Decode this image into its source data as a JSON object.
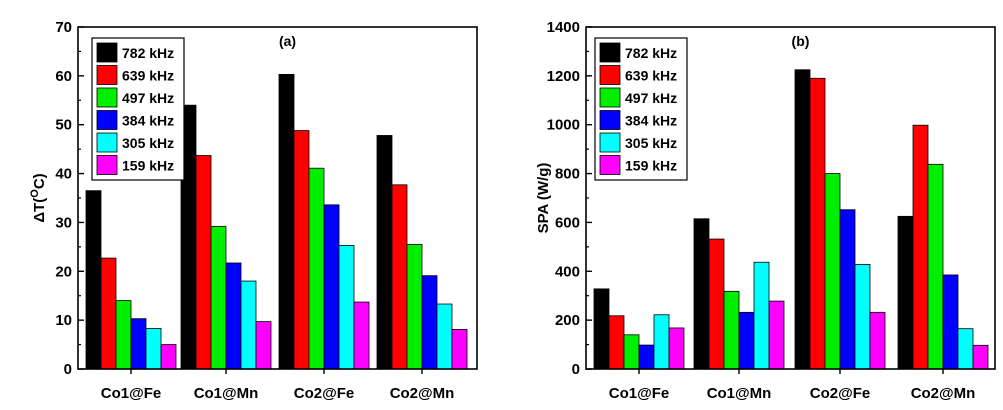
{
  "chart_data": [
    {
      "type": "bar",
      "panel_label": "(a)",
      "ylabel": "ΔT(°C)",
      "ylabel_parts": {
        "main": "ΔT(",
        "sup": "O",
        "end": "C)"
      },
      "ylim": [
        0,
        70
      ],
      "yticks": [
        0,
        10,
        20,
        30,
        40,
        50,
        60,
        70
      ],
      "categories": [
        "Co1@Fe",
        "Co1@Mn",
        "Co2@Fe",
        "Co2@Mn"
      ],
      "legend_position": "top-left",
      "grid": false,
      "series": [
        {
          "name": "782 kHz",
          "color": "#000000",
          "values": [
            36.5,
            54.0,
            60.3,
            47.8
          ]
        },
        {
          "name": "639 kHz",
          "color": "#ff0000",
          "values": [
            22.7,
            43.7,
            48.8,
            37.7
          ]
        },
        {
          "name": "497 kHz",
          "color": "#00ee00",
          "values": [
            14.0,
            29.2,
            41.1,
            25.5
          ]
        },
        {
          "name": "384 kHz",
          "color": "#0000ff",
          "values": [
            10.3,
            21.7,
            33.6,
            19.1
          ]
        },
        {
          "name": "305 kHz",
          "color": "#00ffff",
          "values": [
            8.3,
            18.0,
            25.3,
            13.3
          ]
        },
        {
          "name": "159 kHz",
          "color": "#ff00ff",
          "values": [
            5.0,
            9.7,
            13.7,
            8.1
          ]
        }
      ]
    },
    {
      "type": "bar",
      "panel_label": "(b)",
      "ylabel": "SPA (W/g)",
      "ylim": [
        0,
        1400
      ],
      "yticks": [
        0,
        200,
        400,
        600,
        800,
        1000,
        1200,
        1400
      ],
      "categories": [
        "Co1@Fe",
        "Co1@Mn",
        "Co2@Fe",
        "Co2@Mn"
      ],
      "legend_position": "top-left",
      "grid": false,
      "series": [
        {
          "name": "782 kHz",
          "color": "#000000",
          "values": [
            328,
            615,
            1225,
            625
          ]
        },
        {
          "name": "639 kHz",
          "color": "#ff0000",
          "values": [
            218,
            532,
            1190,
            998
          ]
        },
        {
          "name": "497 kHz",
          "color": "#00ee00",
          "values": [
            140,
            318,
            800,
            838
          ]
        },
        {
          "name": "384 kHz",
          "color": "#0000ff",
          "values": [
            98,
            232,
            652,
            385
          ]
        },
        {
          "name": "305 kHz",
          "color": "#00ffff",
          "values": [
            222,
            437,
            428,
            165
          ]
        },
        {
          "name": "159 kHz",
          "color": "#ff00ff",
          "values": [
            168,
            278,
            232,
            97
          ]
        }
      ]
    }
  ]
}
